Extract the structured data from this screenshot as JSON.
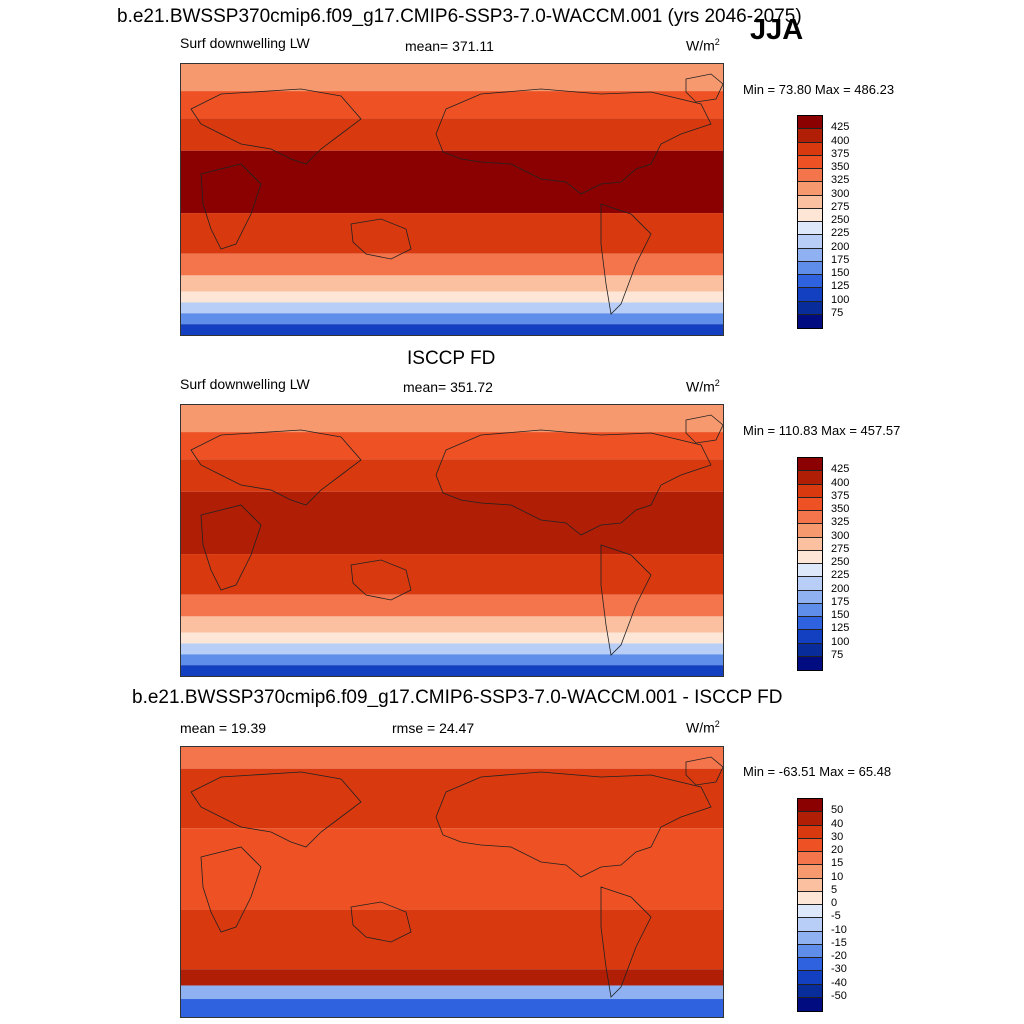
{
  "season": "JJA",
  "panels": [
    {
      "title": "b.e21.BWSSP370cmip6.f09_g17.CMIP6-SSP3-7.0-WACCM.001 (yrs 2046-2075)",
      "left_label": "Surf downwelling LW",
      "center_label": "mean= 371.11",
      "unit_base": "W/m",
      "unit_exp": "2",
      "minmax": "Min =  73.80 Max = 486.23",
      "colorbar_labels": [
        "425",
        "400",
        "375",
        "350",
        "325",
        "300",
        "275",
        "250",
        "225",
        "200",
        "175",
        "150",
        "125",
        "100",
        "75"
      ]
    },
    {
      "title": "ISCCP FD",
      "left_label": "Surf downwelling LW",
      "center_label": "mean= 351.72",
      "unit_base": "W/m",
      "unit_exp": "2",
      "minmax": "Min = 110.83 Max = 457.57",
      "colorbar_labels": [
        "425",
        "400",
        "375",
        "350",
        "325",
        "300",
        "275",
        "250",
        "225",
        "200",
        "175",
        "150",
        "125",
        "100",
        "75"
      ]
    },
    {
      "title": "b.e21.BWSSP370cmip6.f09_g17.CMIP6-SSP3-7.0-WACCM.001 - ISCCP FD",
      "left_label": "mean =  19.39",
      "center_label": "rmse =  24.47",
      "unit_base": "W/m",
      "unit_exp": "2",
      "minmax": "Min = -63.51 Max =  65.48",
      "colorbar_labels": [
        "50",
        "40",
        "30",
        "20",
        "15",
        "10",
        "5",
        "0",
        "-5",
        "-10",
        "-15",
        "-20",
        "-30",
        "-40",
        "-50"
      ]
    }
  ],
  "colors": {
    "scale": [
      "#8b0000",
      "#b01e06",
      "#d8390f",
      "#ee5224",
      "#f4744b",
      "#f7996f",
      "#fac0a0",
      "#fde6d6",
      "#dde8fb",
      "#b8cef7",
      "#8fb1f1",
      "#5e8ee9",
      "#2f62de",
      "#1240c0",
      "#082c9a",
      "#000c80"
    ]
  }
}
